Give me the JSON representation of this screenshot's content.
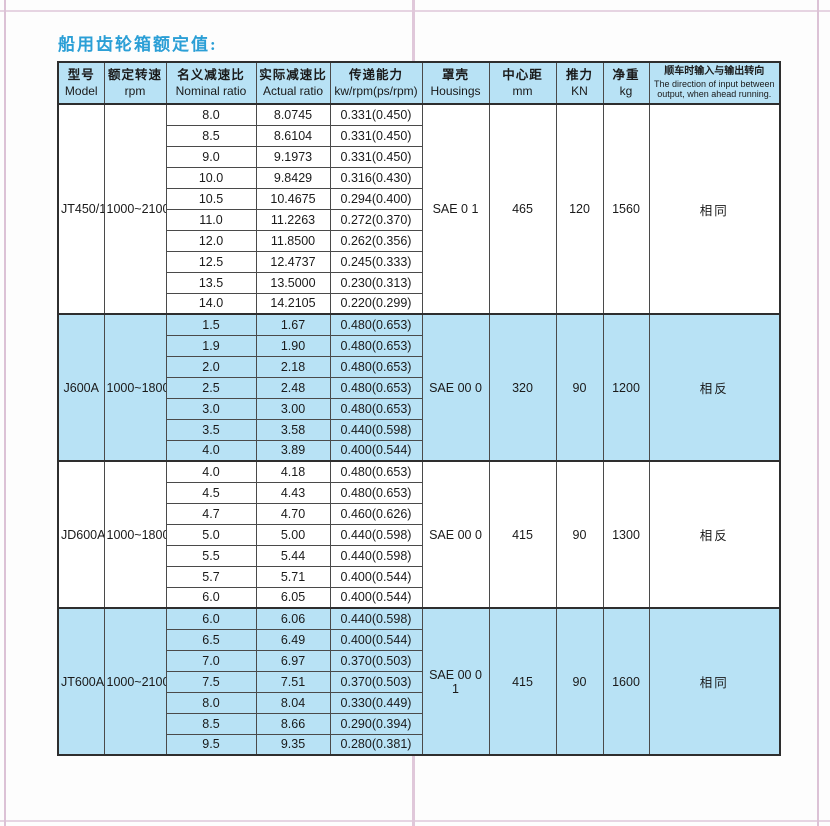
{
  "page": {
    "title": "船用齿轮箱额定值:",
    "colors": {
      "title_blue": "#2b9fd6",
      "header_bg": "#b8e2f5",
      "highlight_row_bg": "#b8e2f5",
      "frame_pink": "#dcc2d6",
      "border_dark": "#2e2e2e"
    }
  },
  "table": {
    "headers": [
      {
        "zh": "型号",
        "en": "Model"
      },
      {
        "zh": "额定转速",
        "en": "rpm"
      },
      {
        "zh": "名义减速比",
        "en": "Nominal ratio"
      },
      {
        "zh": "实际减速比",
        "en": "Actual ratio"
      },
      {
        "zh": "传递能力",
        "en": "kw/rpm(ps/rpm)"
      },
      {
        "zh": "罩壳",
        "en": "Housings"
      },
      {
        "zh": "中心距",
        "en": "mm"
      },
      {
        "zh": "推力",
        "en": "KN"
      },
      {
        "zh": "净重",
        "en": "kg"
      },
      {
        "zh": "顺车时输入与输出转向",
        "en": "The direction of input between output, when ahead running."
      }
    ],
    "groups": [
      {
        "model": "JT450/1",
        "rpm": "1000~2100",
        "housing": "SAE 0 1",
        "center_distance_mm": "465",
        "thrust_kn": "120",
        "weight_kg": "1560",
        "direction": "相同",
        "highlight": false,
        "rows": [
          [
            "8.0",
            "8.0745",
            "0.331(0.450)"
          ],
          [
            "8.5",
            "8.6104",
            "0.331(0.450)"
          ],
          [
            "9.0",
            "9.1973",
            "0.331(0.450)"
          ],
          [
            "10.0",
            "9.8429",
            "0.316(0.430)"
          ],
          [
            "10.5",
            "10.4675",
            "0.294(0.400)"
          ],
          [
            "11.0",
            "11.2263",
            "0.272(0.370)"
          ],
          [
            "12.0",
            "11.8500",
            "0.262(0.356)"
          ],
          [
            "12.5",
            "12.4737",
            "0.245(0.333)"
          ],
          [
            "13.5",
            "13.5000",
            "0.230(0.313)"
          ],
          [
            "14.0",
            "14.2105",
            "0.220(0.299)"
          ]
        ]
      },
      {
        "model": "J600A",
        "rpm": "1000~1800",
        "housing": "SAE 00 0",
        "center_distance_mm": "320",
        "thrust_kn": "90",
        "weight_kg": "1200",
        "direction": "相反",
        "highlight": true,
        "rows": [
          [
            "1.5",
            "1.67",
            "0.480(0.653)"
          ],
          [
            "1.9",
            "1.90",
            "0.480(0.653)"
          ],
          [
            "2.0",
            "2.18",
            "0.480(0.653)"
          ],
          [
            "2.5",
            "2.48",
            "0.480(0.653)"
          ],
          [
            "3.0",
            "3.00",
            "0.480(0.653)"
          ],
          [
            "3.5",
            "3.58",
            "0.440(0.598)"
          ],
          [
            "4.0",
            "3.89",
            "0.400(0.544)"
          ]
        ]
      },
      {
        "model": "JD600A",
        "rpm": "1000~1800",
        "housing": "SAE 00 0",
        "center_distance_mm": "415",
        "thrust_kn": "90",
        "weight_kg": "1300",
        "direction": "相反",
        "highlight": false,
        "rows": [
          [
            "4.0",
            "4.18",
            "0.480(0.653)"
          ],
          [
            "4.5",
            "4.43",
            "0.480(0.653)"
          ],
          [
            "4.7",
            "4.70",
            "0.460(0.626)"
          ],
          [
            "5.0",
            "5.00",
            "0.440(0.598)"
          ],
          [
            "5.5",
            "5.44",
            "0.440(0.598)"
          ],
          [
            "5.7",
            "5.71",
            "0.400(0.544)"
          ],
          [
            "6.0",
            "6.05",
            "0.400(0.544)"
          ]
        ]
      },
      {
        "model": "JT600A",
        "rpm": "1000~2100",
        "housing": "SAE 00 0 1",
        "center_distance_mm": "415",
        "thrust_kn": "90",
        "weight_kg": "1600",
        "direction": "相同",
        "highlight": true,
        "rows": [
          [
            "6.0",
            "6.06",
            "0.440(0.598)"
          ],
          [
            "6.5",
            "6.49",
            "0.400(0.544)"
          ],
          [
            "7.0",
            "6.97",
            "0.370(0.503)"
          ],
          [
            "7.5",
            "7.51",
            "0.370(0.503)"
          ],
          [
            "8.0",
            "8.04",
            "0.330(0.449)"
          ],
          [
            "8.5",
            "8.66",
            "0.290(0.394)"
          ],
          [
            "9.5",
            "9.35",
            "0.280(0.381)"
          ]
        ]
      }
    ]
  }
}
